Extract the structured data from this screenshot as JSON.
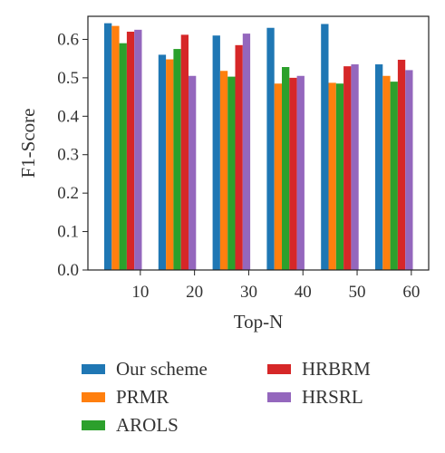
{
  "chart_data": {
    "type": "bar",
    "title": "",
    "xlabel": "Top-N",
    "ylabel": "F1-Score",
    "categories": [
      "10",
      "20",
      "30",
      "40",
      "50",
      "60"
    ],
    "ylim": [
      0,
      0.66
    ],
    "yticks": [
      "0.0",
      "0.1",
      "0.2",
      "0.3",
      "0.4",
      "0.5",
      "0.6"
    ],
    "grid": false,
    "legend_position": "bottom",
    "series": [
      {
        "name": "Our scheme",
        "color": "#1f77b4",
        "values": [
          0.642,
          0.56,
          0.61,
          0.63,
          0.64,
          0.535
        ]
      },
      {
        "name": "PRMR",
        "color": "#ff7f0e",
        "values": [
          0.635,
          0.548,
          0.518,
          0.485,
          0.487,
          0.505
        ]
      },
      {
        "name": "AROLS",
        "color": "#2ca02c",
        "values": [
          0.59,
          0.575,
          0.503,
          0.528,
          0.485,
          0.49
        ]
      },
      {
        "name": "HRBRM",
        "color": "#d62728",
        "values": [
          0.62,
          0.612,
          0.585,
          0.5,
          0.53,
          0.547
        ]
      },
      {
        "name": "HRSRL",
        "color": "#9467bd",
        "values": [
          0.625,
          0.505,
          0.615,
          0.505,
          0.535,
          0.52
        ]
      }
    ]
  }
}
